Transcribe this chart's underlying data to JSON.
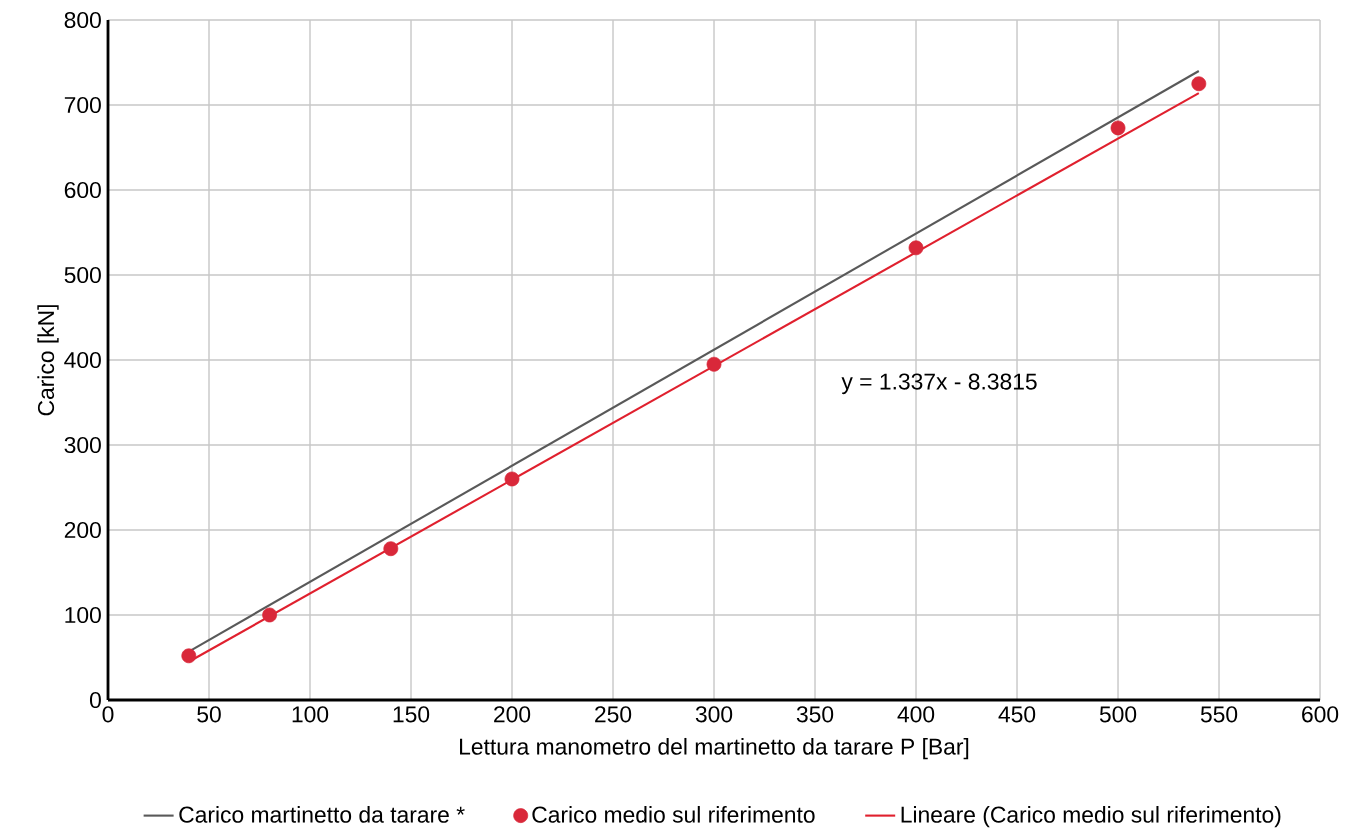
{
  "chart_data": {
    "type": "scatter",
    "xlabel": "Lettura manometro del martinetto da tarare  P [Bar]",
    "ylabel": "Carico [kN]",
    "xlim": [
      0,
      600
    ],
    "ylim": [
      0,
      800
    ],
    "xticks": [
      0,
      50,
      100,
      150,
      200,
      250,
      300,
      350,
      400,
      450,
      500,
      550,
      600
    ],
    "yticks": [
      0,
      100,
      200,
      300,
      400,
      500,
      600,
      700,
      800
    ],
    "grid": true,
    "legend": "bottom",
    "series": [
      {
        "name": "Carico martinetto da tarare *",
        "type": "line",
        "color": "#595959",
        "marker": "none",
        "line_style": "solid",
        "x": [
          40,
          540
        ],
        "values": [
          57,
          740
        ]
      },
      {
        "name": "Carico medio sul riferimento",
        "color": "#d9283a",
        "marker": "circle",
        "x": [
          40,
          80,
          140,
          200,
          300,
          400,
          500,
          540
        ],
        "values": [
          52,
          100,
          178,
          260,
          395,
          532,
          673,
          725
        ]
      },
      {
        "name": "Lineare (Carico medio sul riferimento)",
        "type": "line",
        "color": "#e0202e",
        "marker": "none",
        "line_style": "solid",
        "x": [
          40,
          540
        ],
        "values": [
          45,
          714
        ]
      }
    ],
    "annotations": [
      "y = 1.337x  - 8.3815"
    ]
  }
}
